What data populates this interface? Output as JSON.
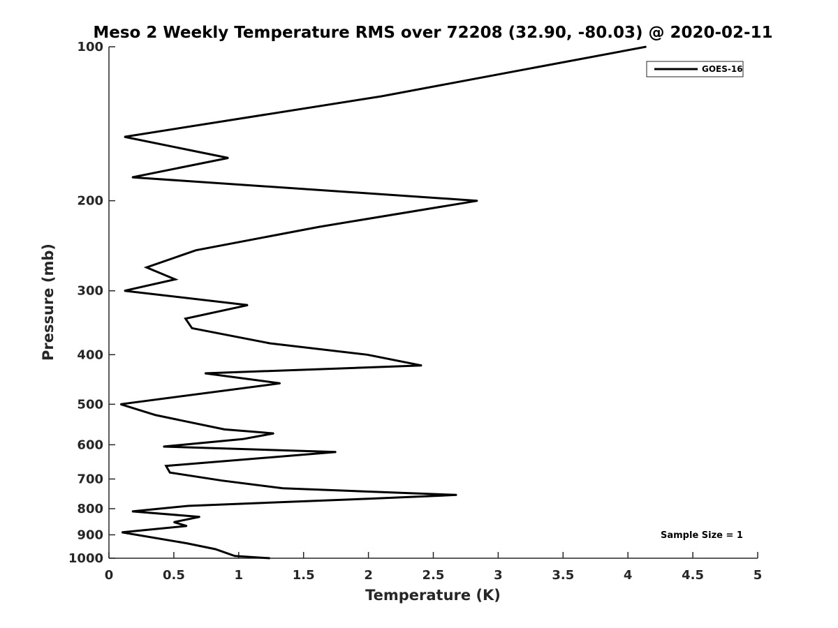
{
  "chart_data": {
    "type": "line",
    "title": "Meso 2 Weekly Temperature RMS over 72208 (32.90, -80.03) @ 2020-02-11",
    "xlabel": "Temperature (K)",
    "ylabel": "Pressure (mb)",
    "xlim": [
      0,
      5
    ],
    "ylim": [
      100,
      1000
    ],
    "yscale": "log",
    "y_reversed": true,
    "grid": false,
    "legend_position": "top-right",
    "annotation": "Sample Size = 1",
    "xticks": [
      "0",
      "0.5",
      "1",
      "1.5",
      "2",
      "2.5",
      "3",
      "3.5",
      "4",
      "4.5",
      "5"
    ],
    "yticks": [
      "100",
      "200",
      "300",
      "400",
      "500",
      "600",
      "700",
      "800",
      "900",
      "1000"
    ],
    "series": [
      {
        "name": "GOES-16",
        "color": "#000000",
        "points": [
          [
            4.14,
            100
          ],
          [
            2.1,
            125
          ],
          [
            0.12,
            150
          ],
          [
            0.92,
            165
          ],
          [
            0.18,
            180
          ],
          [
            2.84,
            200
          ],
          [
            1.62,
            225
          ],
          [
            0.67,
            250
          ],
          [
            0.29,
            270
          ],
          [
            0.51,
            285
          ],
          [
            0.12,
            300
          ],
          [
            1.07,
            320
          ],
          [
            0.59,
            340
          ],
          [
            0.64,
            355
          ],
          [
            1.24,
            380
          ],
          [
            1.99,
            400
          ],
          [
            2.41,
            420
          ],
          [
            0.74,
            435
          ],
          [
            1.32,
            455
          ],
          [
            0.09,
            500
          ],
          [
            0.36,
            525
          ],
          [
            0.89,
            560
          ],
          [
            1.27,
            570
          ],
          [
            1.03,
            585
          ],
          [
            0.42,
            605
          ],
          [
            1.75,
            620
          ],
          [
            0.44,
            660
          ],
          [
            0.47,
            680
          ],
          [
            0.87,
            705
          ],
          [
            1.34,
            730
          ],
          [
            2.68,
            752
          ],
          [
            2.0,
            765
          ],
          [
            0.61,
            790
          ],
          [
            0.18,
            810
          ],
          [
            0.7,
            830
          ],
          [
            0.5,
            850
          ],
          [
            0.6,
            865
          ],
          [
            0.1,
            890
          ],
          [
            0.6,
            935
          ],
          [
            0.82,
            960
          ],
          [
            0.97,
            990
          ],
          [
            1.24,
            1000
          ]
        ]
      }
    ]
  }
}
